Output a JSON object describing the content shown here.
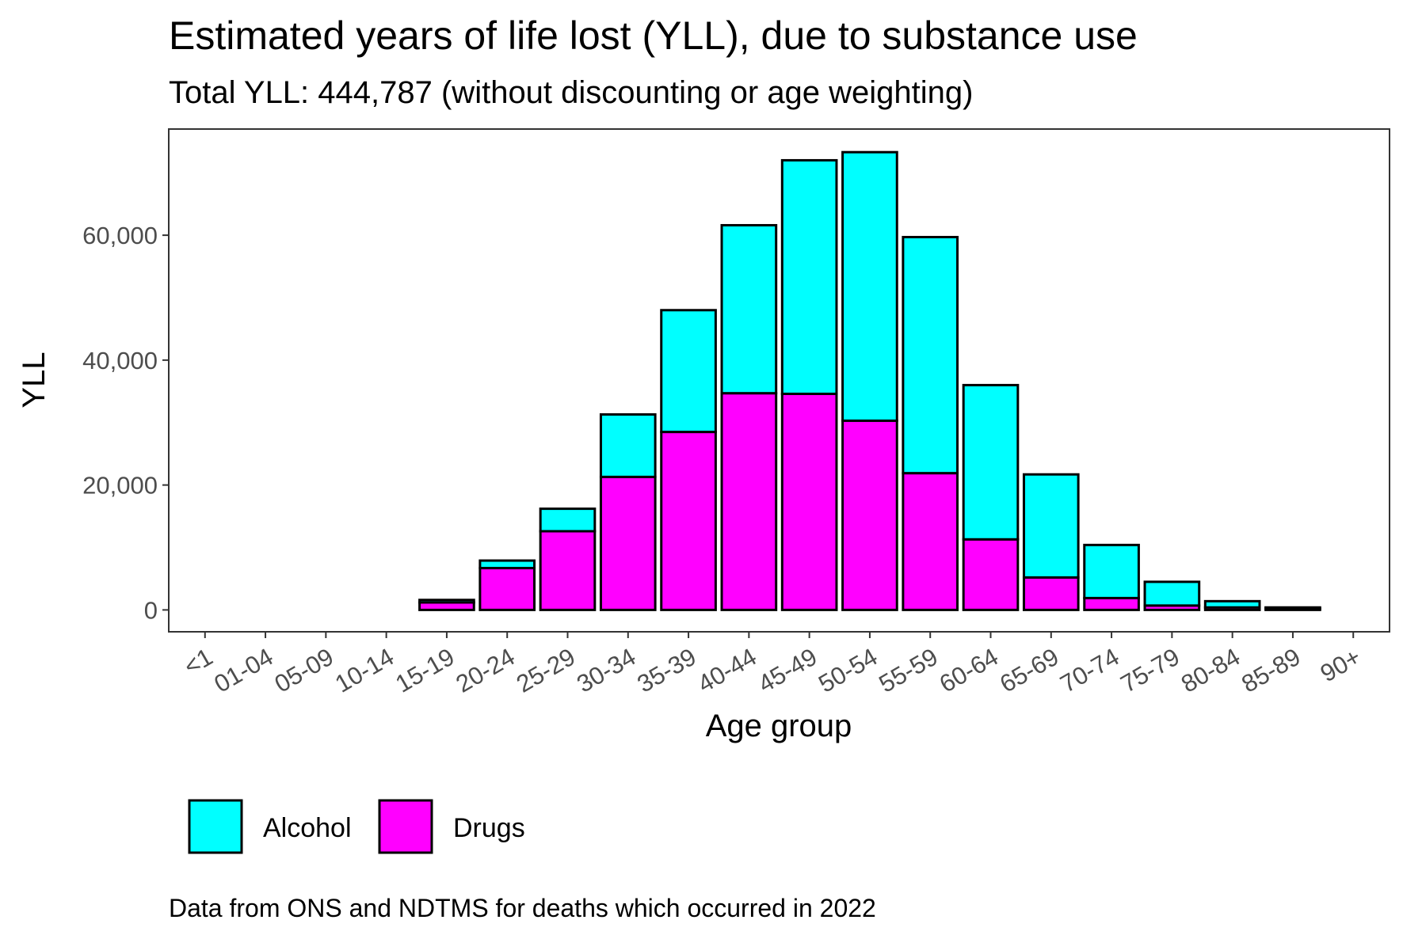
{
  "chart_data": {
    "type": "bar",
    "stacked": true,
    "title": "Estimated years of life lost (YLL), due to substance use",
    "subtitle": "Total YLL: 444,787 (without discounting or age weighting)",
    "xlabel": "Age group",
    "ylabel": "YLL",
    "caption": "Data from ONS and NDTMS for deaths which occurred in 2022",
    "ylim": [
      -3500,
      77000
    ],
    "yticks": [
      0,
      20000,
      40000,
      60000
    ],
    "ytick_labels": [
      "0",
      "20,000",
      "40,000",
      "60,000"
    ],
    "grid": false,
    "legend_position": "bottom",
    "categories": [
      "<1",
      "01-04",
      "05-09",
      "10-14",
      "15-19",
      "20-24",
      "25-29",
      "30-34",
      "35-39",
      "40-44",
      "45-49",
      "50-54",
      "55-59",
      "60-64",
      "65-69",
      "70-74",
      "75-79",
      "80-84",
      "85-89",
      "90+"
    ],
    "series": [
      {
        "name": "Drugs",
        "color": "#ff00ff",
        "values": [
          0,
          0,
          0,
          0,
          1200,
          6700,
          12600,
          21300,
          28500,
          34700,
          34600,
          30300,
          21900,
          11300,
          5200,
          1900,
          700,
          400,
          200,
          0
        ]
      },
      {
        "name": "Alcohol",
        "color": "#00ffff",
        "values": [
          0,
          0,
          0,
          0,
          400,
          1200,
          3600,
          10000,
          19500,
          26900,
          37400,
          43000,
          37800,
          24700,
          16500,
          8500,
          3800,
          1000,
          200,
          0
        ]
      }
    ],
    "legend_order": [
      "Alcohol",
      "Drugs"
    ]
  }
}
